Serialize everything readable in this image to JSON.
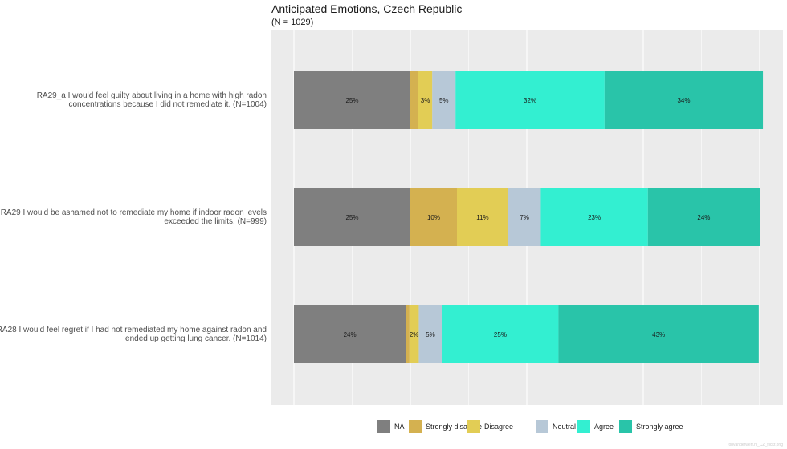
{
  "chart_data": {
    "type": "bar",
    "orientation": "horizontal",
    "stacked": true,
    "title": "Anticipated Emotions, Czech Republic",
    "subtitle": "(N = 1029)",
    "categories": [
      "RA29_a I would feel guilty about living in a home with high radon concentrations because I did not remediate it. (N=1004)",
      "RA29 I would be ashamed not to remediate my home if indoor radon levels exceeded the limits. (N=999)",
      "RA28 I would feel regret if I had not remediated my home against radon and ended up getting lung cancer. (N=1014)"
    ],
    "category_lines": [
      [
        "RA29_a I would feel guilty about living in a home with high radon",
        "concentrations because I did not remediate it. (N=1004)"
      ],
      [
        "RA29 I would be ashamed not to remediate my home if indoor radon levels",
        "exceeded the limits. (N=999)"
      ],
      [
        "RA28 I would feel regret if I had not remediated my home against radon and",
        "ended up getting lung cancer. (N=1014)"
      ]
    ],
    "series": [
      {
        "name": "NA",
        "color": "#7f7f7f",
        "values": [
          25,
          25,
          24
        ],
        "labels": [
          "25%",
          "25%",
          "24%"
        ]
      },
      {
        "name": "Strongly disagree",
        "color": "#d4b150",
        "values": [
          1.7,
          10,
          0.8
        ],
        "labels": [
          "",
          "10%",
          ""
        ]
      },
      {
        "name": "Disagree",
        "color": "#e2cd55",
        "values": [
          3,
          11,
          2
        ],
        "labels": [
          "3%",
          "11%",
          "2%"
        ]
      },
      {
        "name": "Neutral",
        "color": "#b7c8d7",
        "values": [
          5,
          7,
          5
        ],
        "labels": [
          "5%",
          "7%",
          "5%"
        ]
      },
      {
        "name": "Agree",
        "color": "#33efd1",
        "values": [
          32,
          23,
          25
        ],
        "labels": [
          "32%",
          "23%",
          "25%"
        ]
      },
      {
        "name": "Strongly agree",
        "color": "#29c4a9",
        "values": [
          34,
          24,
          43
        ],
        "labels": [
          "34%",
          "24%",
          "43%"
        ]
      }
    ],
    "xlim": [
      0,
      100
    ],
    "grid": true,
    "legend": "bottom",
    "xlabel": "",
    "ylabel": ""
  },
  "watermark": "robvanderwerf.nl_CZ_flickr.png",
  "colors": {
    "panel": "#ebebeb",
    "grid": "#ffffff"
  }
}
